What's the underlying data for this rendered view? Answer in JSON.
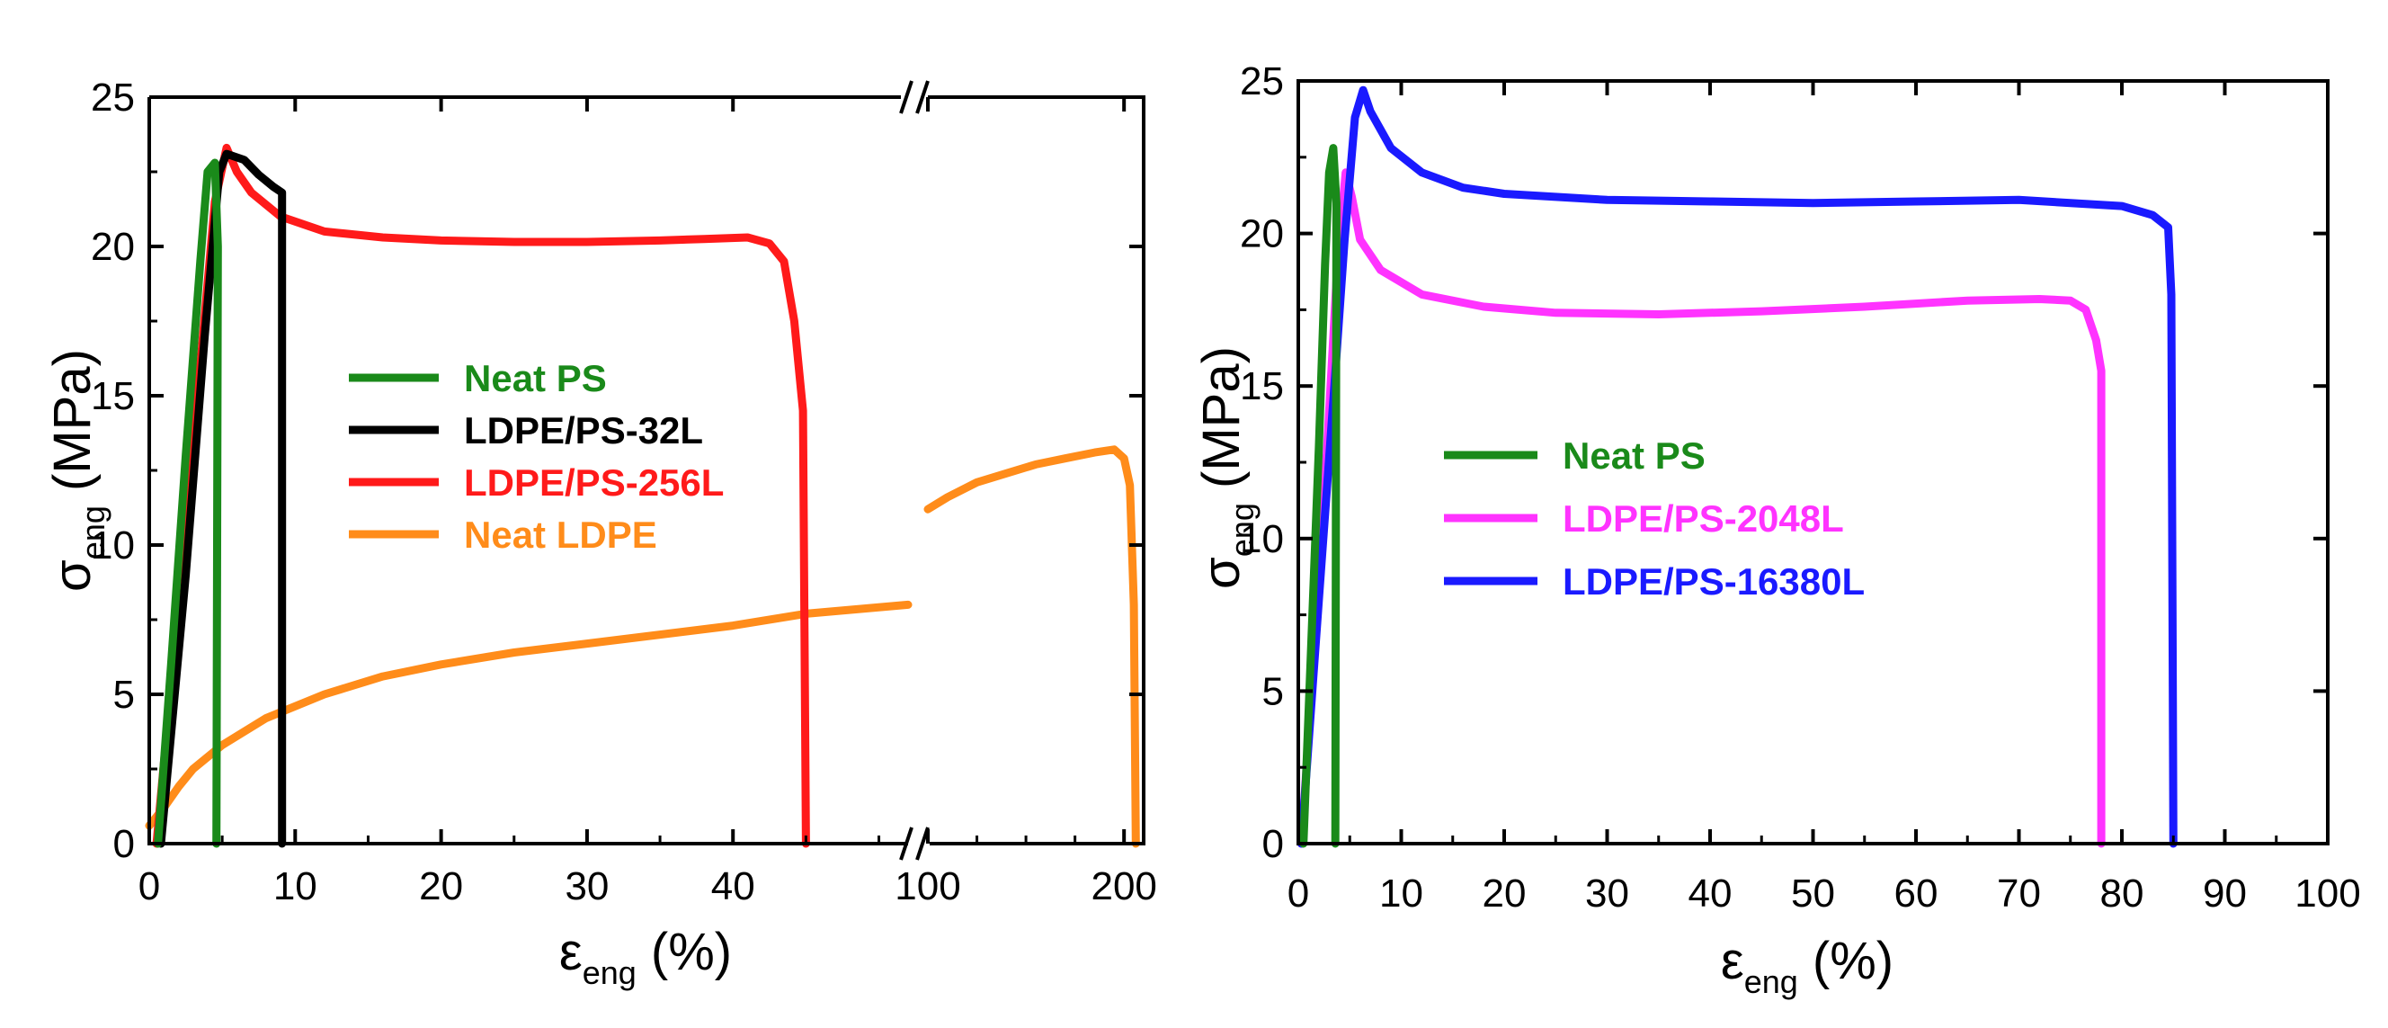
{
  "chart_data": [
    {
      "type": "line",
      "panel": "left",
      "title": "",
      "xlabel": "ε",
      "xlabel_sub": "eng",
      "xlabel_unit": " (%)",
      "ylabel": "σ",
      "ylabel_sub": "eng",
      "ylabel_unit": " (MPa)",
      "ylim": [
        0,
        25
      ],
      "yticks": [
        0,
        5,
        10,
        15,
        20,
        25
      ],
      "x_axis_broken": true,
      "x_segments": [
        {
          "range": [
            0,
            52
          ],
          "ticks": [
            0,
            10,
            20,
            30,
            40
          ]
        },
        {
          "range": [
            100,
            210
          ],
          "ticks": [
            100,
            200
          ]
        }
      ],
      "xtick_labels": [
        "0",
        "10",
        "20",
        "30",
        "40",
        "100",
        "200"
      ],
      "legend": [
        {
          "label": "Neat PS",
          "color": "#1a8a1a"
        },
        {
          "label": "LDPE/PS-32L",
          "color": "#000000"
        },
        {
          "label": "LDPE/PS-256L",
          "color": "#ff1a1a"
        },
        {
          "label": "Neat LDPE",
          "color": "#ff8c1a"
        }
      ],
      "series": [
        {
          "name": "Neat LDPE",
          "color": "#ff8c1a",
          "points": [
            [
              0,
              0.6
            ],
            [
              1,
              1.2
            ],
            [
              2,
              1.9
            ],
            [
              3,
              2.5
            ],
            [
              5,
              3.3
            ],
            [
              8,
              4.2
            ],
            [
              12,
              5.0
            ],
            [
              16,
              5.6
            ],
            [
              20,
              6.0
            ],
            [
              25,
              6.4
            ],
            [
              30,
              6.7
            ],
            [
              35,
              7.0
            ],
            [
              40,
              7.3
            ],
            [
              45,
              7.7
            ],
            [
              52,
              8.0
            ]
          ]
        },
        {
          "name": "Neat LDPE",
          "color": "#ff8c1a",
          "points": [
            [
              100,
              11.2
            ],
            [
              110,
              11.6
            ],
            [
              125,
              12.1
            ],
            [
              140,
              12.4
            ],
            [
              155,
              12.7
            ],
            [
              170,
              12.9
            ],
            [
              185,
              13.1
            ],
            [
              195,
              13.2
            ],
            [
              200,
              12.9
            ],
            [
              203,
              12.0
            ],
            [
              205,
              8.0
            ],
            [
              206,
              0
            ]
          ]
        },
        {
          "name": "LDPE/PS-256L",
          "color": "#ff1a1a",
          "points": [
            [
              0.5,
              0
            ],
            [
              2,
              8
            ],
            [
              3.5,
              16
            ],
            [
              4.5,
              21.5
            ],
            [
              5.3,
              23.3
            ],
            [
              6,
              22.5
            ],
            [
              7,
              21.8
            ],
            [
              9,
              21.0
            ],
            [
              12,
              20.5
            ],
            [
              16,
              20.3
            ],
            [
              20,
              20.2
            ],
            [
              25,
              20.15
            ],
            [
              30,
              20.15
            ],
            [
              35,
              20.2
            ],
            [
              38,
              20.25
            ],
            [
              41,
              20.3
            ],
            [
              42.5,
              20.1
            ],
            [
              43.5,
              19.5
            ],
            [
              44.2,
              17.5
            ],
            [
              44.8,
              14.5
            ],
            [
              45,
              0
            ]
          ]
        },
        {
          "name": "LDPE/PS-32L",
          "color": "#000000",
          "points": [
            [
              0.8,
              0
            ],
            [
              2.5,
              9
            ],
            [
              3.8,
              17
            ],
            [
              4.8,
              22.5
            ],
            [
              5.3,
              23.1
            ],
            [
              6.5,
              22.9
            ],
            [
              7.5,
              22.4
            ],
            [
              8.5,
              22.0
            ],
            [
              9.1,
              21.8
            ],
            [
              9.1,
              0
            ]
          ]
        },
        {
          "name": "Neat PS",
          "color": "#1a8a1a",
          "points": [
            [
              0.6,
              0
            ],
            [
              1.5,
              6
            ],
            [
              2.5,
              13
            ],
            [
              3.5,
              19.5
            ],
            [
              4.0,
              22.5
            ],
            [
              4.5,
              22.8
            ],
            [
              4.7,
              20
            ],
            [
              4.6,
              0
            ]
          ]
        }
      ]
    },
    {
      "type": "line",
      "panel": "right",
      "title": "",
      "xlabel": "ε",
      "xlabel_sub": "eng",
      "xlabel_unit": " (%)",
      "ylabel": "σ",
      "ylabel_sub": "eng",
      "ylabel_unit": " (MPa)",
      "xlim": [
        0,
        100
      ],
      "ylim": [
        0,
        25
      ],
      "xticks": [
        0,
        10,
        20,
        30,
        40,
        50,
        60,
        70,
        80,
        90,
        100
      ],
      "yticks": [
        0,
        5,
        10,
        15,
        20,
        25
      ],
      "legend": [
        {
          "label": "Neat PS",
          "color": "#1a8a1a"
        },
        {
          "label": "LDPE/PS-2048L",
          "color": "#ff33ff"
        },
        {
          "label": "LDPE/PS-16380L",
          "color": "#1a1aff"
        }
      ],
      "series": [
        {
          "name": "LDPE/PS-2048L",
          "color": "#ff33ff",
          "points": [
            [
              0.3,
              0
            ],
            [
              1.5,
              6
            ],
            [
              2.8,
              13
            ],
            [
              3.8,
              19
            ],
            [
              4.6,
              22.0
            ],
            [
              5.2,
              21.2
            ],
            [
              6,
              19.8
            ],
            [
              8,
              18.8
            ],
            [
              12,
              18.0
            ],
            [
              18,
              17.6
            ],
            [
              25,
              17.4
            ],
            [
              35,
              17.35
            ],
            [
              45,
              17.45
            ],
            [
              55,
              17.6
            ],
            [
              65,
              17.8
            ],
            [
              72,
              17.85
            ],
            [
              75,
              17.8
            ],
            [
              76.5,
              17.5
            ],
            [
              77.5,
              16.5
            ],
            [
              78,
              15.5
            ],
            [
              78,
              0
            ]
          ]
        },
        {
          "name": "LDPE/PS-16380L",
          "color": "#1a1aff",
          "points": [
            [
              0.3,
              0
            ],
            [
              2,
              8
            ],
            [
              3.5,
              15
            ],
            [
              4.5,
              19.8
            ],
            [
              5.5,
              23.8
            ],
            [
              6.3,
              24.7
            ],
            [
              7,
              24.0
            ],
            [
              9,
              22.8
            ],
            [
              12,
              22.0
            ],
            [
              16,
              21.5
            ],
            [
              20,
              21.3
            ],
            [
              30,
              21.1
            ],
            [
              40,
              21.05
            ],
            [
              50,
              21.0
            ],
            [
              60,
              21.05
            ],
            [
              70,
              21.1
            ],
            [
              75,
              21.0
            ],
            [
              80,
              20.9
            ],
            [
              83,
              20.6
            ],
            [
              84.5,
              20.2
            ],
            [
              84.8,
              18
            ],
            [
              85,
              0
            ]
          ]
        },
        {
          "name": "Neat PS",
          "color": "#1a8a1a",
          "points": [
            [
              0.5,
              0
            ],
            [
              1.2,
              6
            ],
            [
              2,
              13
            ],
            [
              2.6,
              19
            ],
            [
              3.0,
              22.0
            ],
            [
              3.4,
              22.8
            ],
            [
              3.7,
              21
            ],
            [
              3.6,
              0
            ]
          ]
        }
      ]
    }
  ]
}
